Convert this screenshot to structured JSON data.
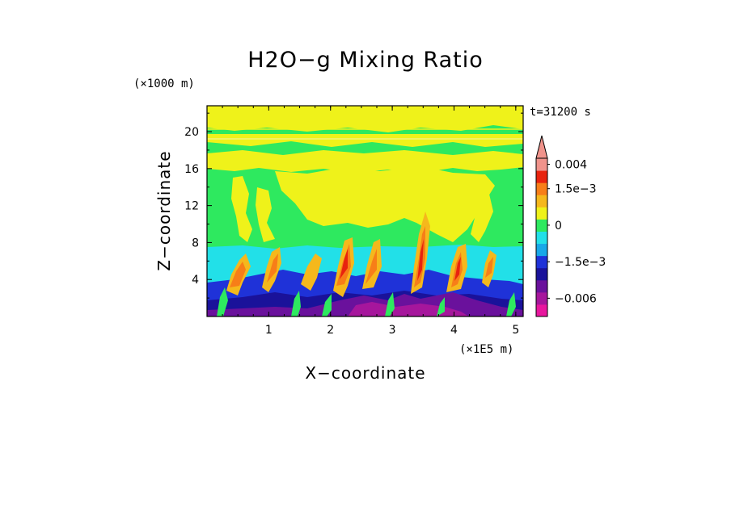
{
  "chart_data": {
    "type": "heatmap",
    "title": "H2O−g Mixing Ratio",
    "xlabel": "X−coordinate",
    "ylabel": "Z−coordinate",
    "x_unit": "(×1E5 m)",
    "y_unit": "(×1000 m)",
    "time_label": "t=31200 s",
    "xlim": [
      0,
      5.12
    ],
    "ylim": [
      0,
      22.8
    ],
    "x_ticks": [
      1,
      2,
      3,
      4,
      5
    ],
    "y_ticks": [
      4,
      8,
      12,
      16,
      20
    ],
    "colorbar": {
      "levels": [
        -0.008,
        -0.006,
        -0.004,
        -0.002,
        -0.0015,
        -0.001,
        -0.0005,
        0,
        0.0005,
        0.001,
        0.0015,
        0.002,
        0.004
      ],
      "colors": [
        "#e8179e",
        "#a6169c",
        "#6a119c",
        "#1a129a",
        "#1f32d8",
        "#18a8e8",
        "#22e0e8",
        "#2ee95f",
        "#eff21a",
        "#f5b81c",
        "#f77e18",
        "#e8230e",
        "#f0938b"
      ],
      "tick_labels": [
        {
          "level": 0.004,
          "label": "0.004"
        },
        {
          "level": 0.0015,
          "label": "1.5e−3"
        },
        {
          "level": 0,
          "label": "0"
        },
        {
          "level": -0.0015,
          "label": "−1.5e−3"
        },
        {
          "level": -0.006,
          "label": "−0.006"
        }
      ],
      "extend": "max",
      "extend_color": "#f0938b"
    },
    "field_regions": [
      {
        "z_range": [
          0,
          1.5
        ],
        "value": -0.002,
        "description_level": "mixed"
      },
      {
        "z_range": [
          1.5,
          4.5
        ],
        "value": -0.0015
      },
      {
        "z_range": [
          4.5,
          7.5
        ],
        "value": -0.0008
      },
      {
        "z_range": [
          7.5,
          16
        ],
        "value": 0.0002
      },
      {
        "z_range": [
          16,
          22.8
        ],
        "value": 0.0006
      }
    ]
  }
}
